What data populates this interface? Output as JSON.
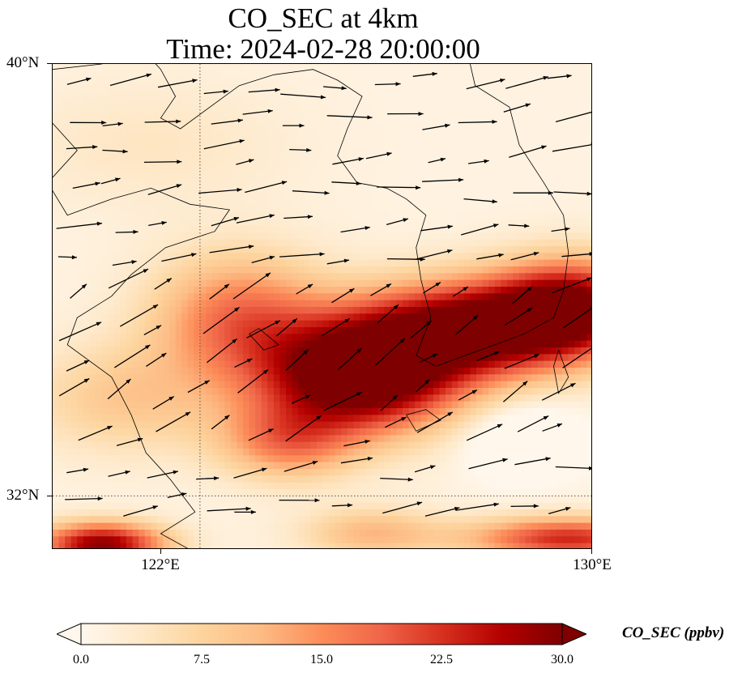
{
  "title_line1": "CO_SEC at 4km",
  "title_line2": "Time: 2024-02-28 20:00:00",
  "map": {
    "extent": {
      "lon_min": 119,
      "lon_max": 130,
      "lat_min": 31,
      "lat_max": 40
    },
    "lat_labels": [
      {
        "value": 40,
        "text": "40°N"
      },
      {
        "value": 32,
        "text": "32°N"
      }
    ],
    "lon_labels": [
      {
        "value": 122,
        "text": "122°E"
      },
      {
        "value": 130,
        "text": "130°E"
      }
    ],
    "gridlines": {
      "lon": [
        122
      ],
      "lat": [
        32
      ],
      "style": "dotted"
    }
  },
  "colorbar": {
    "label": "CO_SEC (ppbv)",
    "cmap": "OrRd",
    "vmin": 0,
    "vmax": 30,
    "extend": "both",
    "ticks": [
      "0.0",
      "7.5",
      "15.0",
      "22.5",
      "30.0"
    ],
    "colors": [
      "#fff7ec",
      "#fee8c8",
      "#fdd49e",
      "#fdbb84",
      "#fc8d59",
      "#ef6548",
      "#d7301f",
      "#b30000",
      "#7f0000"
    ]
  },
  "chart_data": {
    "type": "heatmap",
    "variable": "CO_SEC",
    "units": "ppbv",
    "level": "4km",
    "time": "2024-02-28 20:00:00",
    "field_description_points": [
      {
        "lon": 125.5,
        "lat": 34.3,
        "value": 30
      },
      {
        "lon": 127.5,
        "lat": 35.0,
        "value": 30
      },
      {
        "lon": 129.5,
        "lat": 35.3,
        "value": 28
      },
      {
        "lon": 122.5,
        "lat": 35.5,
        "value": 12
      },
      {
        "lon": 124.0,
        "lat": 32.8,
        "value": 10
      },
      {
        "lon": 126.0,
        "lat": 32.0,
        "value": 4
      },
      {
        "lon": 128.5,
        "lat": 33.0,
        "value": 2
      },
      {
        "lon": 120.0,
        "lat": 31.2,
        "value": 28
      },
      {
        "lon": 124.0,
        "lat": 38.0,
        "value": 2
      },
      {
        "lon": 120.5,
        "lat": 39.5,
        "value": 1
      }
    ],
    "wind_vectors": "arrows pointing generally eastward to north-eastward"
  }
}
